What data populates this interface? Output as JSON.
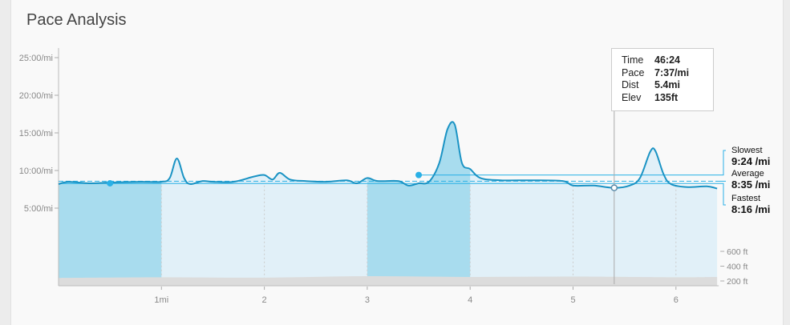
{
  "title": "Pace Analysis",
  "tooltip": {
    "rows": [
      {
        "label": "Time",
        "value": "46:24"
      },
      {
        "label": "Pace",
        "value": "7:37/mi"
      },
      {
        "label": "Dist",
        "value": "5.4mi"
      },
      {
        "label": "Elev",
        "value": "135ft"
      }
    ]
  },
  "legend": {
    "slowest_label": "Slowest",
    "slowest_value": "9:24 /mi",
    "average_label": "Average",
    "average_value": "8:35 /mi",
    "fastest_label": "Fastest",
    "fastest_value": "8:16 /mi"
  },
  "colors": {
    "line": "#1a93c4",
    "highlight_fill": "#a8dcee",
    "fill": "#e1f0f8",
    "marker": "#29b0e6",
    "elevation": "#dcdcdc"
  },
  "chart_data": {
    "type": "area",
    "y_ticks": [
      "25:00/mi",
      "20:00/mi",
      "15:00/mi",
      "10:00/mi",
      "5:00/mi"
    ],
    "y_tick_values": [
      25,
      20,
      15,
      10,
      5
    ],
    "x_ticks": [
      "1mi",
      "2",
      "3",
      "4",
      "5",
      "6"
    ],
    "x_tick_values": [
      1,
      2,
      3,
      4,
      5,
      6
    ],
    "xlim": [
      0,
      6.4
    ],
    "highlighted_miles": [
      [
        0,
        1
      ],
      [
        3,
        4
      ]
    ],
    "pace_min_per_mi": [
      [
        0,
        8.2
      ],
      [
        0.1,
        8.5
      ],
      [
        0.3,
        8.3
      ],
      [
        0.5,
        8.4
      ],
      [
        0.8,
        8.5
      ],
      [
        1.0,
        8.5
      ],
      [
        1.08,
        9.0
      ],
      [
        1.15,
        11.6
      ],
      [
        1.22,
        9.0
      ],
      [
        1.28,
        8.2
      ],
      [
        1.4,
        8.6
      ],
      [
        1.5,
        8.5
      ],
      [
        1.7,
        8.5
      ],
      [
        1.9,
        9.2
      ],
      [
        2.0,
        9.4
      ],
      [
        2.08,
        8.8
      ],
      [
        2.15,
        9.7
      ],
      [
        2.25,
        8.8
      ],
      [
        2.4,
        8.6
      ],
      [
        2.6,
        8.5
      ],
      [
        2.8,
        8.7
      ],
      [
        2.9,
        8.3
      ],
      [
        3.0,
        9.0
      ],
      [
        3.1,
        8.6
      ],
      [
        3.3,
        8.6
      ],
      [
        3.4,
        8.0
      ],
      [
        3.5,
        8.3
      ],
      [
        3.6,
        8.5
      ],
      [
        3.7,
        11.0
      ],
      [
        3.78,
        15.5
      ],
      [
        3.85,
        16.1
      ],
      [
        3.92,
        11.0
      ],
      [
        4.0,
        10.2
      ],
      [
        4.1,
        9.0
      ],
      [
        4.3,
        8.7
      ],
      [
        4.6,
        8.7
      ],
      [
        4.9,
        8.6
      ],
      [
        5.0,
        8.0
      ],
      [
        5.2,
        8.0
      ],
      [
        5.4,
        7.7
      ],
      [
        5.55,
        8.0
      ],
      [
        5.65,
        9.0
      ],
      [
        5.75,
        12.5
      ],
      [
        5.8,
        12.6
      ],
      [
        5.88,
        9.5
      ],
      [
        5.95,
        8.2
      ],
      [
        6.1,
        7.8
      ],
      [
        6.3,
        7.9
      ],
      [
        6.4,
        7.6
      ]
    ],
    "slowest": 9.4,
    "average": 8.58,
    "fastest": 8.27,
    "markers": [
      {
        "mi": 0.5,
        "pace": 8.3,
        "type": "filled"
      },
      {
        "mi": 3.5,
        "pace": 9.4,
        "type": "filled"
      },
      {
        "mi": 5.4,
        "pace": 7.7,
        "type": "hollow"
      }
    ],
    "cursor_mi": 5.4,
    "elevation_ticks": [
      "600 ft",
      "400 ft",
      "200 ft"
    ],
    "elevation_tick_values": [
      600,
      400,
      200
    ],
    "elevation_ft": [
      [
        0,
        110
      ],
      [
        1,
        120
      ],
      [
        2,
        115
      ],
      [
        3,
        135
      ],
      [
        4,
        125
      ],
      [
        5,
        130
      ],
      [
        6,
        120
      ],
      [
        6.4,
        125
      ]
    ]
  }
}
